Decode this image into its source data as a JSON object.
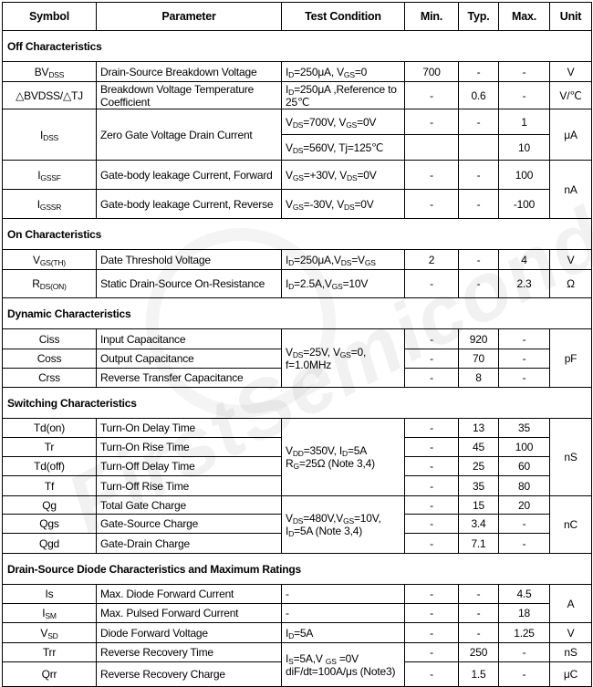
{
  "watermark": "FirstSemiconductor",
  "headers": {
    "symbol": "Symbol",
    "parameter": "Parameter",
    "test_condition": "Test Condition",
    "min": "Min.",
    "typ": "Typ.",
    "max": "Max.",
    "unit": "Unit"
  },
  "sections": [
    {
      "title": "Off Characteristics",
      "rows": [
        {
          "sym": [
            "BV",
            {
              "s": "DSS"
            }
          ],
          "param": "Drain-Source Breakdown Voltage",
          "cond": [
            "I",
            {
              "s": "D"
            },
            "=250μA,  V",
            {
              "s": "GS"
            },
            "=0"
          ],
          "min": "700",
          "typ": "-",
          "max": "-",
          "unit": "V"
        },
        {
          "sym": [
            "△BVDSS/△TJ"
          ],
          "param": "Breakdown Voltage Temperature Coefficient",
          "cond": [
            "I",
            {
              "s": "D"
            },
            "=250μA ,Reference to 25℃"
          ],
          "min": "-",
          "typ": "0.6",
          "max": "-",
          "unit": "V/℃"
        },
        {
          "sym": [
            "I",
            {
              "s": "DSS"
            }
          ],
          "symSpan": 2,
          "param": "Zero Gate Voltage Drain Current",
          "paramSpan": 2,
          "cond": [
            "V",
            {
              "s": "DS"
            },
            "=700V, V",
            {
              "s": "GS"
            },
            "=0V"
          ],
          "min": "-",
          "typ": "-",
          "max": "1",
          "unit": "μA",
          "unitSpan": 2
        },
        {
          "cond": [
            "V",
            {
              "s": "DS"
            },
            "=560V, Tj=125℃"
          ],
          "min": "",
          "typ": "",
          "max": "10"
        },
        {
          "sym": [
            "I",
            {
              "s": "GSSF"
            }
          ],
          "param": "Gate-body leakage Current, Forward",
          "cond": [
            "V",
            {
              "s": "GS"
            },
            "=+30V, V",
            {
              "s": "DS"
            },
            "=0V"
          ],
          "min": "-",
          "typ": "-",
          "max": "100",
          "unit": "nA",
          "unitSpan": 2
        },
        {
          "sym": [
            "I",
            {
              "s": "GSSR"
            }
          ],
          "param": "Gate-body leakage Current, Reverse",
          "cond": [
            "V",
            {
              "s": "GS"
            },
            "=-30V, V",
            {
              "s": "DS"
            },
            "=0V"
          ],
          "min": "-",
          "typ": "-",
          "max": "-100"
        }
      ]
    },
    {
      "title": "On Characteristics",
      "rows": [
        {
          "sym": [
            "V",
            {
              "s": "GS(TH)"
            }
          ],
          "param": "Date Threshold Voltage",
          "cond": [
            "I",
            {
              "s": "D"
            },
            "=250μA,V",
            {
              "s": "DS"
            },
            "=V",
            {
              "s": "GS"
            }
          ],
          "min": "2",
          "typ": "-",
          "max": "4",
          "unit": "V"
        },
        {
          "sym": [
            "R",
            {
              "s": "DS(ON)"
            }
          ],
          "param": "Static Drain-Source On-Resistance",
          "cond": [
            "I",
            {
              "s": "D"
            },
            "=2.5A,V",
            {
              "s": "GS"
            },
            "=10V"
          ],
          "min": "-",
          "typ": "-",
          "max": "2.3",
          "unit": "Ω"
        }
      ]
    },
    {
      "title": "Dynamic Characteristics",
      "rows": [
        {
          "sym": [
            "Ciss"
          ],
          "param": "Input Capacitance",
          "cond": [
            "V",
            {
              "s": "DS"
            },
            "=25V,  V",
            {
              "s": "GS"
            },
            "=0, f=1.0MHz"
          ],
          "condSpan": 3,
          "min": "-",
          "typ": "920",
          "max": "-",
          "unit": "pF",
          "unitSpan": 3
        },
        {
          "sym": [
            "Coss"
          ],
          "param": "Output Capacitance",
          "min": "-",
          "typ": "70",
          "max": "-"
        },
        {
          "sym": [
            "Crss"
          ],
          "param": "Reverse Transfer Capacitance",
          "min": "-",
          "typ": "8",
          "max": "-"
        }
      ]
    },
    {
      "title": "Switching Characteristics",
      "rows": [
        {
          "sym": [
            "Td(on)"
          ],
          "param": "Turn-On Delay Time",
          "cond": [
            "V",
            {
              "s": "DD"
            },
            "=350V,  I",
            {
              "s": "D"
            },
            "=5A R",
            {
              "s": "G"
            },
            "=25Ω (Note 3,4)"
          ],
          "condSpan": 4,
          "min": "-",
          "typ": "13",
          "max": "35",
          "unit": "nS",
          "unitSpan": 4
        },
        {
          "sym": [
            "Tr"
          ],
          "param": "Turn-On Rise Time",
          "min": "-",
          "typ": "45",
          "max": "100"
        },
        {
          "sym": [
            "Td(off)"
          ],
          "param": "Turn-Off Delay Time",
          "min": "-",
          "typ": "25",
          "max": "60"
        },
        {
          "sym": [
            "Tf"
          ],
          "param": "Turn-Off Rise Time",
          "min": "-",
          "typ": "35",
          "max": "80"
        },
        {
          "sym": [
            "Qg"
          ],
          "param": "Total Gate Charge",
          "cond": [
            "V",
            {
              "s": "DS"
            },
            "=480V,V",
            {
              "s": "GS"
            },
            "=10V, I",
            {
              "s": "D"
            },
            "=5A (Note 3,4)"
          ],
          "condSpan": 3,
          "min": "-",
          "typ": "15",
          "max": "20",
          "unit": "nC",
          "unitSpan": 3
        },
        {
          "sym": [
            "Qgs"
          ],
          "param": "Gate-Source Charge",
          "min": "-",
          "typ": "3.4",
          "max": "-"
        },
        {
          "sym": [
            "Qgd"
          ],
          "param": "Gate-Drain Charge",
          "min": "-",
          "typ": "7.1",
          "max": "-"
        }
      ]
    },
    {
      "title": "Drain-Source Diode Characteristics and Maximum Ratings",
      "rows": [
        {
          "sym": [
            "Is"
          ],
          "param": "Max. Diode Forward Current",
          "cond": [
            "-"
          ],
          "min": "-",
          "typ": "-",
          "max": "4.5",
          "unit": "A",
          "unitSpan": 2
        },
        {
          "sym": [
            "I",
            {
              "s": "SM"
            }
          ],
          "param": "Max. Pulsed Forward Current",
          "cond": [
            "-"
          ],
          "min": "-",
          "typ": "-",
          "max": "18"
        },
        {
          "sym": [
            "V",
            {
              "s": "SD"
            }
          ],
          "param": "Diode Forward Voltage",
          "cond": [
            "I",
            {
              "s": "D"
            },
            "=5A"
          ],
          "min": "-",
          "typ": "-",
          "max": "1.25",
          "unit": "V"
        },
        {
          "sym": [
            "Trr"
          ],
          "param": "Reverse Recovery Time",
          "cond": [
            "I",
            {
              "s": "S"
            },
            "=5A,V ",
            {
              "s": "GS"
            },
            " =0V diF/dt=100A/μs (Note3)"
          ],
          "condSpan": 2,
          "min": "-",
          "typ": "250",
          "max": "-",
          "unit": "nS"
        },
        {
          "sym": [
            "Qrr"
          ],
          "param": "Reverse Recovery Charge",
          "min": "-",
          "typ": "1.5",
          "max": "-",
          "unit": "μC"
        }
      ]
    }
  ]
}
